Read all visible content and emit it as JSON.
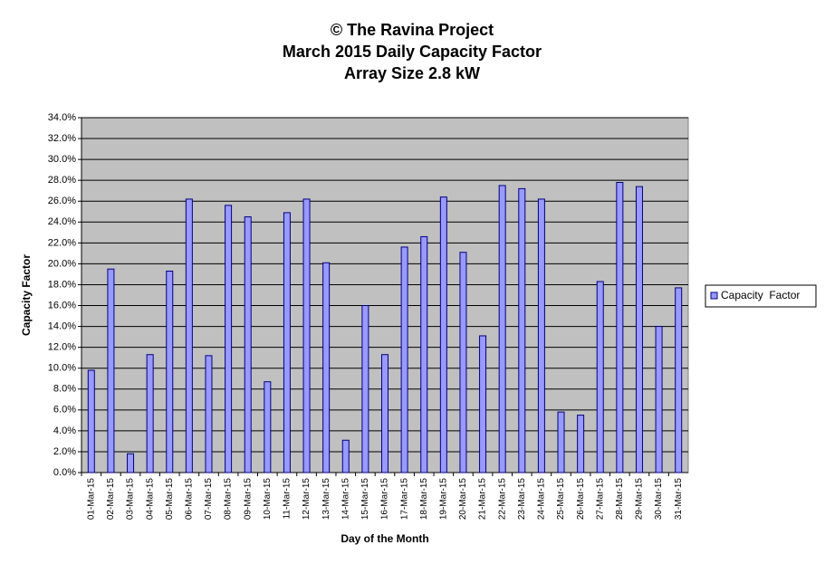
{
  "chart_data": {
    "type": "bar",
    "title": [
      "© The Ravina Project",
      "March 2015 Daily Capacity  Factor",
      "Array Size 2.8 kW"
    ],
    "x_label": "Day of the Month",
    "y_label": "Capacity Factor",
    "categories": [
      "01-Mar-15",
      "02-Mar-15",
      "03-Mar-15",
      "04-Mar-15",
      "05-Mar-15",
      "06-Mar-15",
      "07-Mar-15",
      "08-Mar-15",
      "09-Mar-15",
      "10-Mar-15",
      "11-Mar-15",
      "12-Mar-15",
      "13-Mar-15",
      "14-Mar-15",
      "15-Mar-15",
      "16-Mar-15",
      "17-Mar-15",
      "18-Mar-15",
      "19-Mar-15",
      "20-Mar-15",
      "21-Mar-15",
      "22-Mar-15",
      "23-Mar-15",
      "24-Mar-15",
      "25-Mar-15",
      "26-Mar-15",
      "27-Mar-15",
      "28-Mar-15",
      "29-Mar-15",
      "30-Mar-15",
      "31-Mar-15"
    ],
    "series": [
      {
        "name": "Capacity  Factor",
        "color": "#9999ff",
        "values": [
          9.8,
          19.5,
          1.8,
          11.3,
          19.3,
          26.2,
          11.2,
          25.6,
          24.5,
          8.7,
          24.9,
          26.2,
          20.1,
          3.1,
          16.0,
          11.3,
          21.6,
          22.6,
          26.4,
          21.1,
          13.1,
          27.5,
          27.2,
          26.2,
          5.8,
          5.5,
          18.3,
          27.8,
          27.4,
          14.0,
          17.7
        ]
      }
    ],
    "ylim": [
      0,
      34
    ],
    "yticks": [
      {
        "value": 0,
        "label": "0.0%"
      },
      {
        "value": 2,
        "label": "2.0%"
      },
      {
        "value": 4,
        "label": "4.0%"
      },
      {
        "value": 6,
        "label": "6.0%"
      },
      {
        "value": 8,
        "label": "8.0%"
      },
      {
        "value": 10,
        "label": "10.0%"
      },
      {
        "value": 12,
        "label": "12.0%"
      },
      {
        "value": 14,
        "label": "14.0%"
      },
      {
        "value": 16,
        "label": "16.0%"
      },
      {
        "value": 18,
        "label": "18.0%"
      },
      {
        "value": 20,
        "label": "20.0%"
      },
      {
        "value": 22,
        "label": "22.0%"
      },
      {
        "value": 24,
        "label": "24.0%"
      },
      {
        "value": 26,
        "label": "26.0%"
      },
      {
        "value": 28,
        "label": "28.0%"
      },
      {
        "value": 30,
        "label": "30.0%"
      },
      {
        "value": 32,
        "label": "32.0%"
      },
      {
        "value": 34,
        "label": "34.0%"
      }
    ],
    "grid": true,
    "legend": "right"
  }
}
